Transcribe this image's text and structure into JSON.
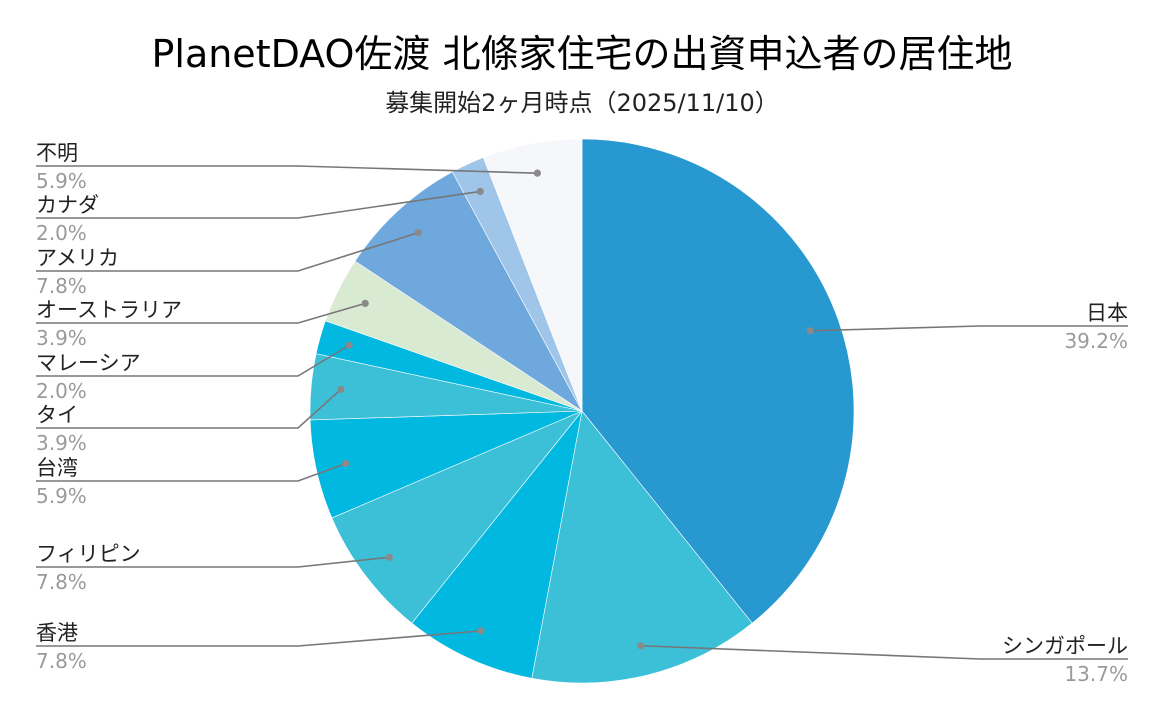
{
  "chart_data": {
    "type": "pie",
    "title": "PlanetDAO佐渡 北條家住宅の出資申込者の居住地",
    "subtitle": "募集開始2ヶ月時点（2025/11/10）",
    "start_angle_deg": 0,
    "direction": "clockwise",
    "slices": [
      {
        "label": "日本",
        "value": 39.2,
        "pct_text": "39.2%",
        "color": "#2898d0",
        "label_side": "right"
      },
      {
        "label": "シンガポール",
        "value": 13.7,
        "pct_text": "13.7%",
        "color": "#3cc0d8",
        "label_side": "right"
      },
      {
        "label": "香港",
        "value": 7.8,
        "pct_text": "7.8%",
        "color": "#00b8e0",
        "label_side": "left"
      },
      {
        "label": "フィリピン",
        "value": 7.8,
        "pct_text": "7.8%",
        "color": "#3cc0d8",
        "label_side": "left"
      },
      {
        "label": "台湾",
        "value": 5.9,
        "pct_text": "5.9%",
        "color": "#00b8e0",
        "label_side": "left"
      },
      {
        "label": "タイ",
        "value": 3.9,
        "pct_text": "3.9%",
        "color": "#3cc0d8",
        "label_side": "left"
      },
      {
        "label": "マレーシア",
        "value": 2.0,
        "pct_text": "2.0%",
        "color": "#00b8e0",
        "label_side": "left"
      },
      {
        "label": "オーストラリア",
        "value": 3.9,
        "pct_text": "3.9%",
        "color": "#d9ead3",
        "label_side": "left"
      },
      {
        "label": "アメリカ",
        "value": 7.8,
        "pct_text": "7.8%",
        "color": "#6fa8dc",
        "label_side": "left"
      },
      {
        "label": "カナダ",
        "value": 2.0,
        "pct_text": "2.0%",
        "color": "#9fc5e8",
        "label_side": "left"
      },
      {
        "label": "不明",
        "value": 5.9,
        "pct_text": "5.9%",
        "color": "#f5f7fa",
        "label_side": "left"
      }
    ]
  }
}
